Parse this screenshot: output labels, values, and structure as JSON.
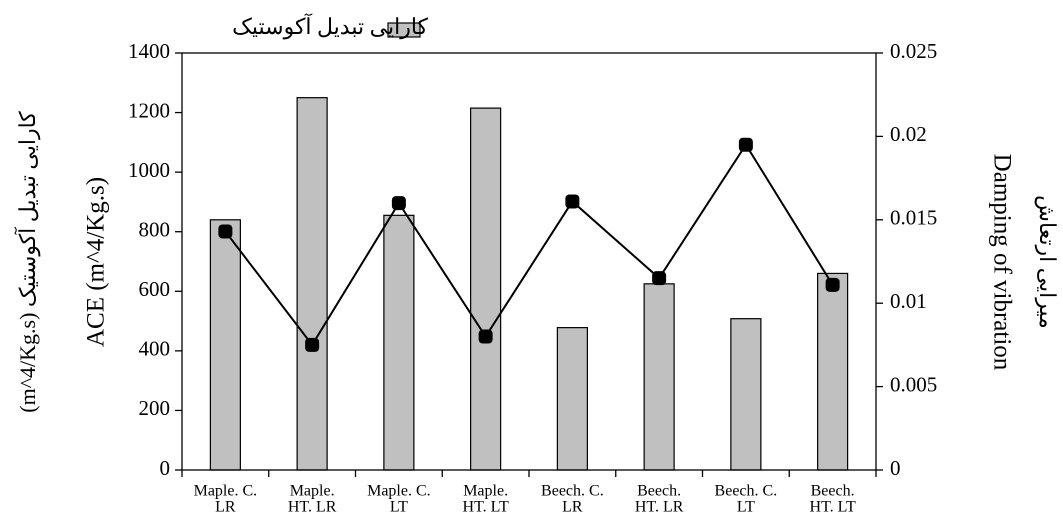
{
  "chart_data": {
    "type": "bar_line",
    "y_label_fa": "(m^4/Kg.s) کارایی تبدیل آکوستیک",
    "y_label": "ACE (m^4/Kg.s)",
    "y2_label": "Damping of vibration",
    "y2_label_fa": "میرایی ارتعاش",
    "categories": [
      [
        "Maple. C.",
        "LR"
      ],
      [
        "Maple.",
        "HT.  LR"
      ],
      [
        "Maple. C.",
        "LT"
      ],
      [
        "Maple.",
        "HT.  LT"
      ],
      [
        "Beech. C.",
        "LR"
      ],
      [
        "Beech.",
        "HT.  LR"
      ],
      [
        "Beech. C.",
        "LT"
      ],
      [
        "Beech.",
        "HT.  LT"
      ]
    ],
    "series": [
      {
        "name": "کارایی تبدیل آکوستیک",
        "type": "bar",
        "color": "#c0c0c0",
        "values": [
          840,
          1250,
          855,
          1215,
          478,
          625,
          508,
          660
        ]
      },
      {
        "type": "line",
        "axis": "y2",
        "color": "#000000",
        "values": [
          0.0143,
          0.0075,
          0.016,
          0.008,
          0.0161,
          0.0115,
          0.0195,
          0.0111
        ]
      }
    ],
    "ylim": [
      0,
      1400
    ],
    "yticks": [
      0,
      200,
      400,
      600,
      800,
      1000,
      1200,
      1400
    ],
    "y2lim": [
      0,
      0.025
    ],
    "y2ticks": [
      0,
      0.005,
      0.01,
      0.015,
      0.02,
      0.025
    ],
    "legend": "top"
  }
}
